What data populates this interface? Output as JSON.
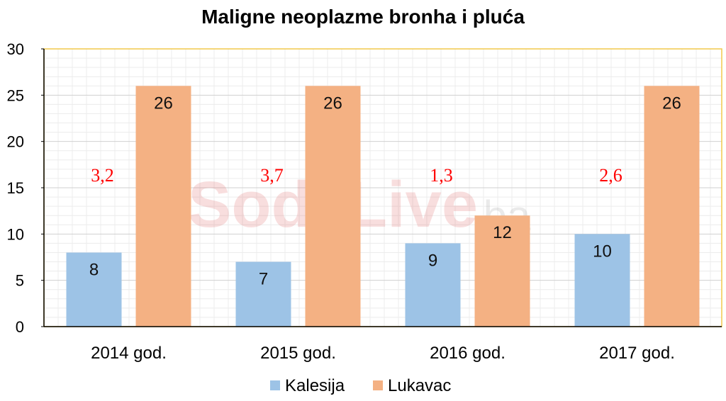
{
  "chart_data": {
    "type": "bar",
    "title": "Maligne neoplazme bronha i pluća",
    "categories": [
      "2014 god.",
      "2015 god.",
      "2016 god.",
      "2017 god."
    ],
    "series": [
      {
        "name": "Kalesija",
        "values": [
          8,
          7,
          9,
          10
        ],
        "color": "#9DC3E6"
      },
      {
        "name": "Lukavac",
        "values": [
          26,
          26,
          12,
          26
        ],
        "color": "#F4B183"
      }
    ],
    "annotations": [
      "3,2",
      "3,7",
      "1,3",
      "2,6"
    ],
    "annotation_color": "#FF0000",
    "ylim": [
      0,
      30
    ],
    "yticks": [
      0,
      5,
      10,
      15,
      20,
      25,
      30
    ],
    "grid": true,
    "legend": "bottom"
  },
  "watermark": {
    "main": "SodaLive",
    "suffix": ".ba"
  }
}
